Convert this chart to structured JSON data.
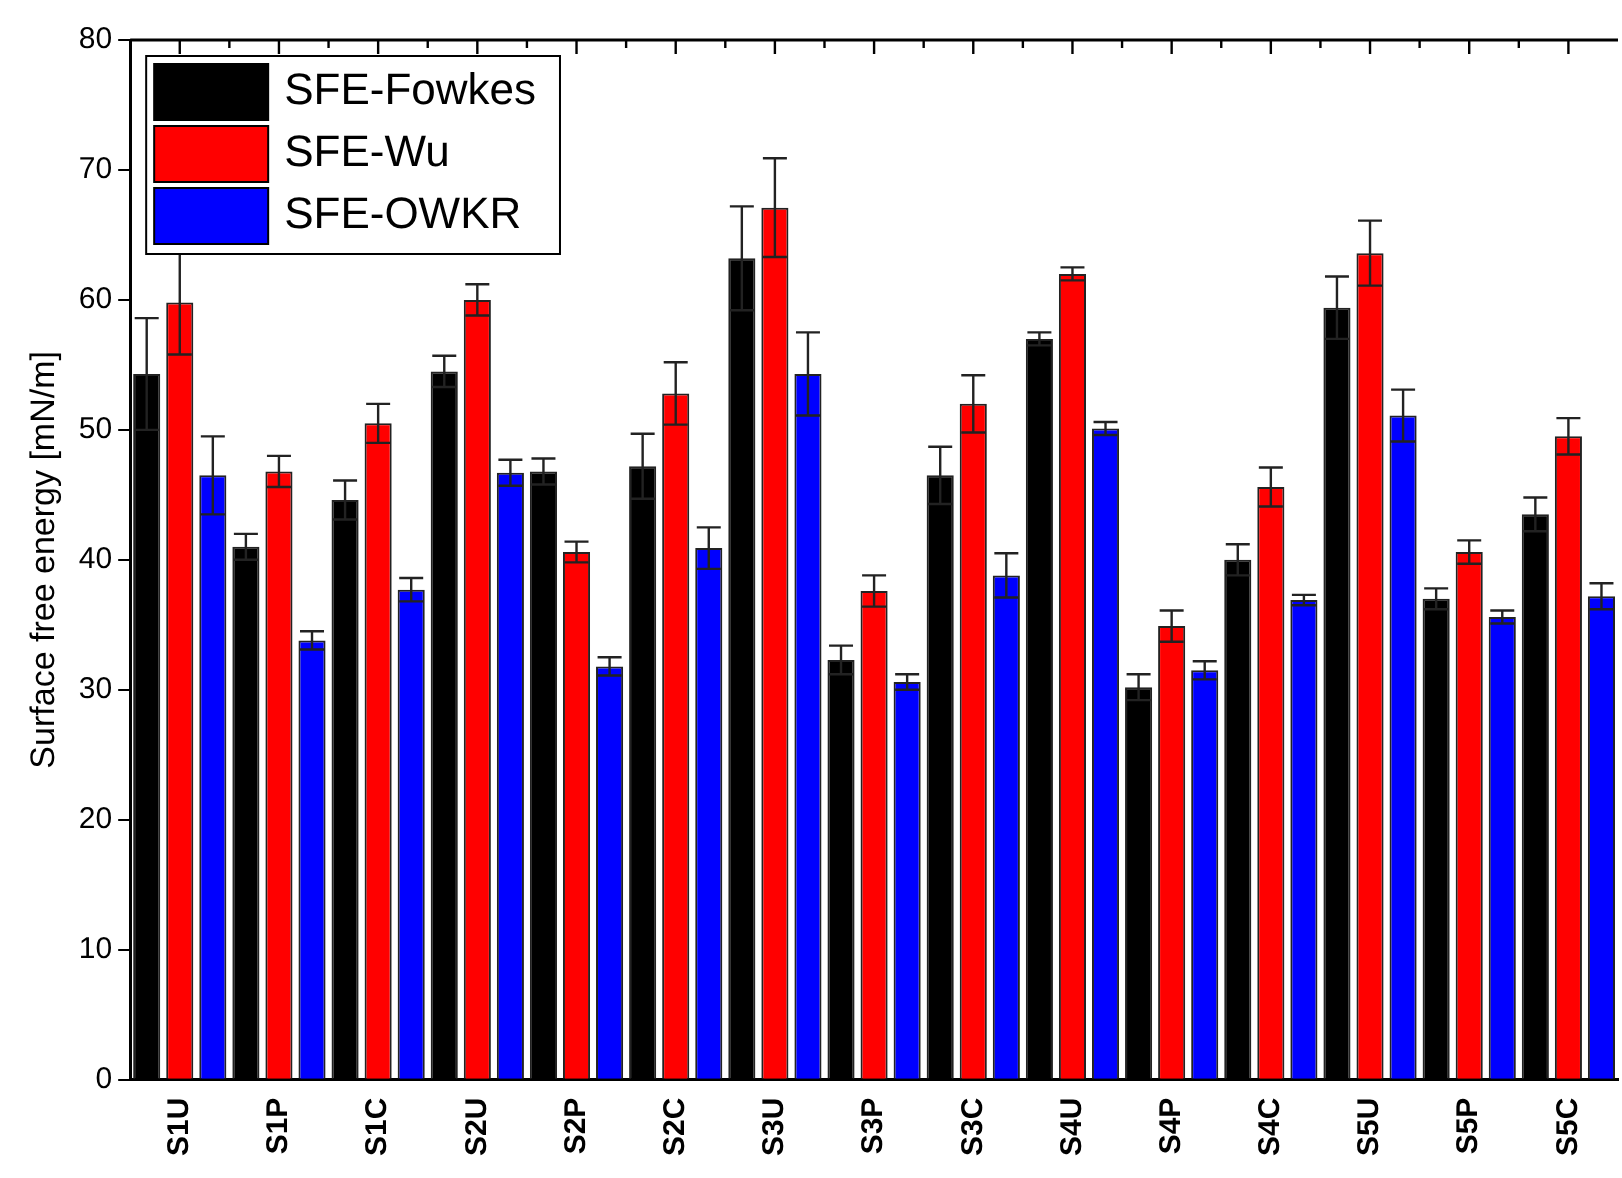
{
  "chart_data": {
    "type": "bar",
    "ylabel": "Surface free energy [mN/m]",
    "categories": [
      "S1U",
      "S1P",
      "S1C",
      "S2U",
      "S2P",
      "S2C",
      "S3U",
      "S3P",
      "S3C",
      "S4U",
      "S4P",
      "S4C",
      "S5U",
      "S5P",
      "S5C"
    ],
    "series": [
      {
        "name": "SFE-Fowkes",
        "color": "#000000",
        "values": [
          54.3,
          41,
          44.6,
          54.5,
          46.8,
          47.2,
          63.2,
          32.3,
          46.5,
          57,
          30.2,
          40,
          59.4,
          37,
          43.5
        ],
        "errors": [
          4.3,
          1,
          1.5,
          1.2,
          1,
          2.5,
          4,
          1.1,
          2.2,
          0.5,
          1,
          1.2,
          2.4,
          0.8,
          1.3
        ]
      },
      {
        "name": "SFE-Wu",
        "color": "#ff0000",
        "values": [
          59.8,
          46.8,
          50.5,
          60,
          40.6,
          52.8,
          67.1,
          37.6,
          52,
          62,
          34.9,
          45.6,
          63.6,
          40.6,
          49.5
        ],
        "errors": [
          4,
          1.2,
          1.5,
          1.2,
          0.8,
          2.4,
          3.8,
          1.2,
          2.2,
          0.5,
          1.2,
          1.5,
          2.5,
          0.9,
          1.4
        ]
      },
      {
        "name": "SFE-OWKR",
        "color": "#0000ff",
        "values": [
          46.5,
          33.8,
          37.7,
          46.7,
          31.8,
          40.9,
          54.3,
          30.6,
          38.8,
          50.1,
          31.5,
          36.9,
          51.1,
          35.6,
          37.2
        ],
        "errors": [
          3,
          0.7,
          0.9,
          1,
          0.7,
          1.6,
          3.2,
          0.6,
          1.7,
          0.5,
          0.7,
          0.4,
          2,
          0.5,
          1
        ]
      }
    ],
    "ylim": [
      0,
      80
    ],
    "yticks": [
      0,
      10,
      20,
      30,
      40,
      50,
      60,
      70,
      80
    ],
    "grid": false,
    "legend": "top left"
  }
}
